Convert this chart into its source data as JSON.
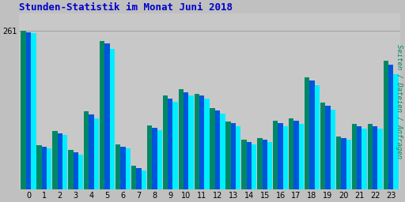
{
  "title": "Stunden-Statistik im Monat Juni 2018",
  "ylabel": "Seiten / Dateien / Anfragen",
  "xlabel_hours": [
    0,
    1,
    2,
    3,
    4,
    5,
    6,
    7,
    8,
    9,
    10,
    11,
    12,
    13,
    14,
    15,
    16,
    17,
    18,
    19,
    20,
    21,
    22,
    23
  ],
  "seiten": [
    258,
    68,
    90,
    58,
    118,
    232,
    68,
    32,
    98,
    145,
    155,
    150,
    125,
    105,
    75,
    78,
    105,
    108,
    172,
    132,
    82,
    100,
    100,
    190
  ],
  "dateien": [
    259,
    70,
    93,
    62,
    124,
    240,
    71,
    36,
    102,
    150,
    160,
    155,
    130,
    109,
    79,
    82,
    110,
    114,
    180,
    138,
    85,
    104,
    104,
    205
  ],
  "anfragen": [
    261,
    73,
    96,
    65,
    129,
    245,
    75,
    40,
    106,
    155,
    165,
    158,
    134,
    112,
    82,
    85,
    114,
    118,
    185,
    143,
    88,
    108,
    108,
    212
  ],
  "color_cyan": "#00EEFF",
  "color_blue": "#0055DD",
  "color_green": "#008866",
  "bg_color": "#C0C0C0",
  "plot_bg": "#C8C8C8",
  "title_color": "#0000CC",
  "ylabel_color": "#008866",
  "ylim": [
    0,
    290
  ],
  "ytick_val": 261
}
